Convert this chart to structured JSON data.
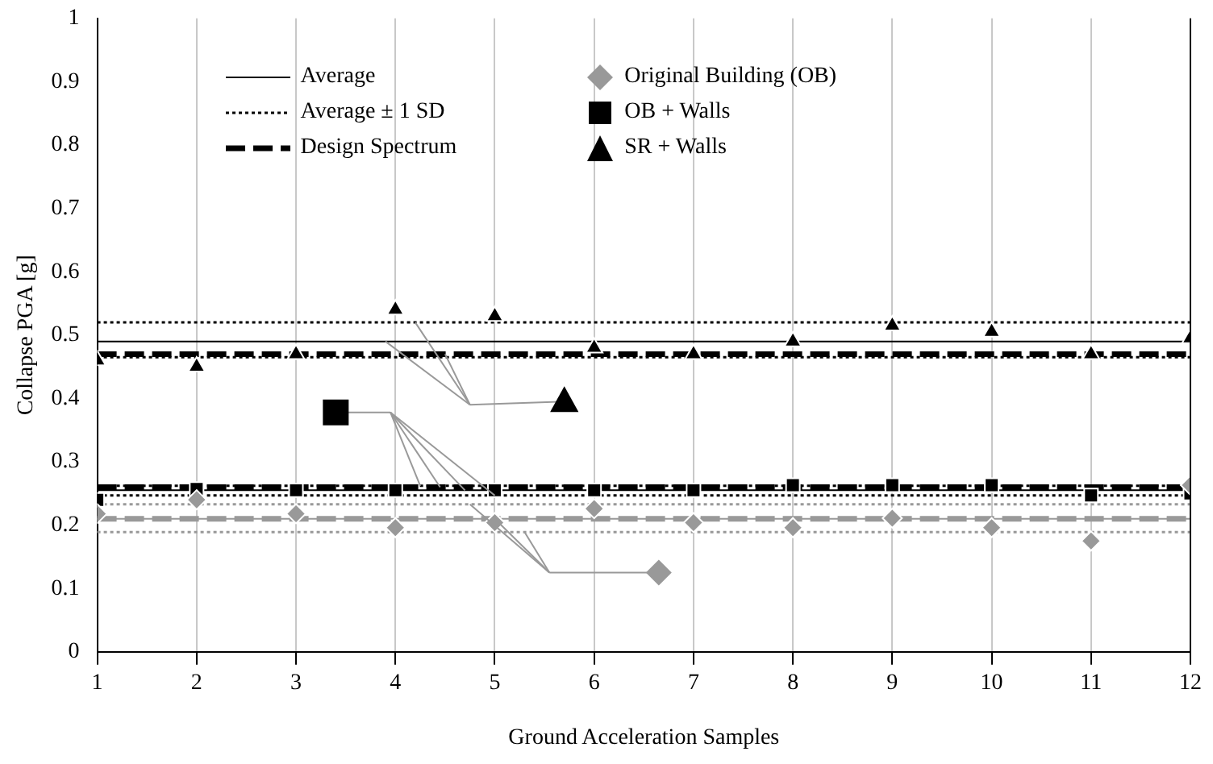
{
  "chart_data": {
    "type": "scatter",
    "xlabel": "Ground Acceleration Samples",
    "ylabel": "Collapse PGA [g]",
    "x": [
      1,
      2,
      3,
      4,
      5,
      6,
      7,
      8,
      9,
      10,
      11,
      12
    ],
    "series": [
      {
        "name": "Original Building (OB)",
        "color": "#999999",
        "marker": "diamond",
        "values": [
          0.218,
          0.24,
          0.218,
          0.196,
          0.204,
          0.226,
          0.204,
          0.196,
          0.211,
          0.196,
          0.175,
          0.263
        ]
      },
      {
        "name": "OB + Walls",
        "color": "#000000",
        "marker": "square",
        "values": [
          0.24,
          0.257,
          0.255,
          0.255,
          0.255,
          0.255,
          0.255,
          0.263,
          0.263,
          0.263,
          0.247,
          0.25
        ]
      },
      {
        "name": "SR + Walls",
        "color": "#000000",
        "marker": "triangle",
        "values": [
          0.46,
          0.45,
          0.47,
          0.54,
          0.53,
          0.48,
          0.47,
          0.49,
          0.515,
          0.505,
          0.47,
          0.495
        ]
      }
    ],
    "ref_lines": [
      {
        "axis": "y",
        "value": 0.21,
        "color": "#999999",
        "line_style": "solid"
      },
      {
        "axis": "y",
        "value": 0.233,
        "color": "#999999",
        "line_style": "dotted"
      },
      {
        "axis": "y",
        "value": 0.189,
        "color": "#999999",
        "line_style": "dotted"
      },
      {
        "axis": "y",
        "value": 0.21,
        "color": "#999999",
        "line_style": "dashed"
      },
      {
        "axis": "y",
        "value": 0.255,
        "color": "#000000",
        "line_style": "solid"
      },
      {
        "axis": "y",
        "value": 0.262,
        "color": "#000000",
        "line_style": "dotted"
      },
      {
        "axis": "y",
        "value": 0.247,
        "color": "#000000",
        "line_style": "dotted"
      },
      {
        "axis": "y",
        "value": 0.26,
        "color": "#000000",
        "line_style": "dashed"
      },
      {
        "axis": "y",
        "value": 0.49,
        "color": "#000000",
        "line_style": "solid",
        "label": "Average"
      },
      {
        "axis": "y",
        "value": 0.52,
        "color": "#000000",
        "line_style": "dotted",
        "label": "Average ± 1 SD"
      },
      {
        "axis": "y",
        "value": 0.465,
        "color": "#000000",
        "line_style": "dotted"
      },
      {
        "axis": "y",
        "value": 0.47,
        "color": "#000000",
        "line_style": "dashed",
        "label": "Design Spectrum"
      }
    ],
    "xlim": [
      1,
      12
    ],
    "xticks": [
      1,
      2,
      3,
      4,
      5,
      6,
      7,
      8,
      9,
      10,
      11,
      12
    ],
    "ylim": [
      0,
      1
    ],
    "yticks": [
      0,
      0.1,
      0.2,
      0.3,
      0.4,
      0.5,
      0.6,
      0.7,
      0.8,
      0.9,
      1
    ],
    "grid": "x",
    "legend": "top"
  }
}
